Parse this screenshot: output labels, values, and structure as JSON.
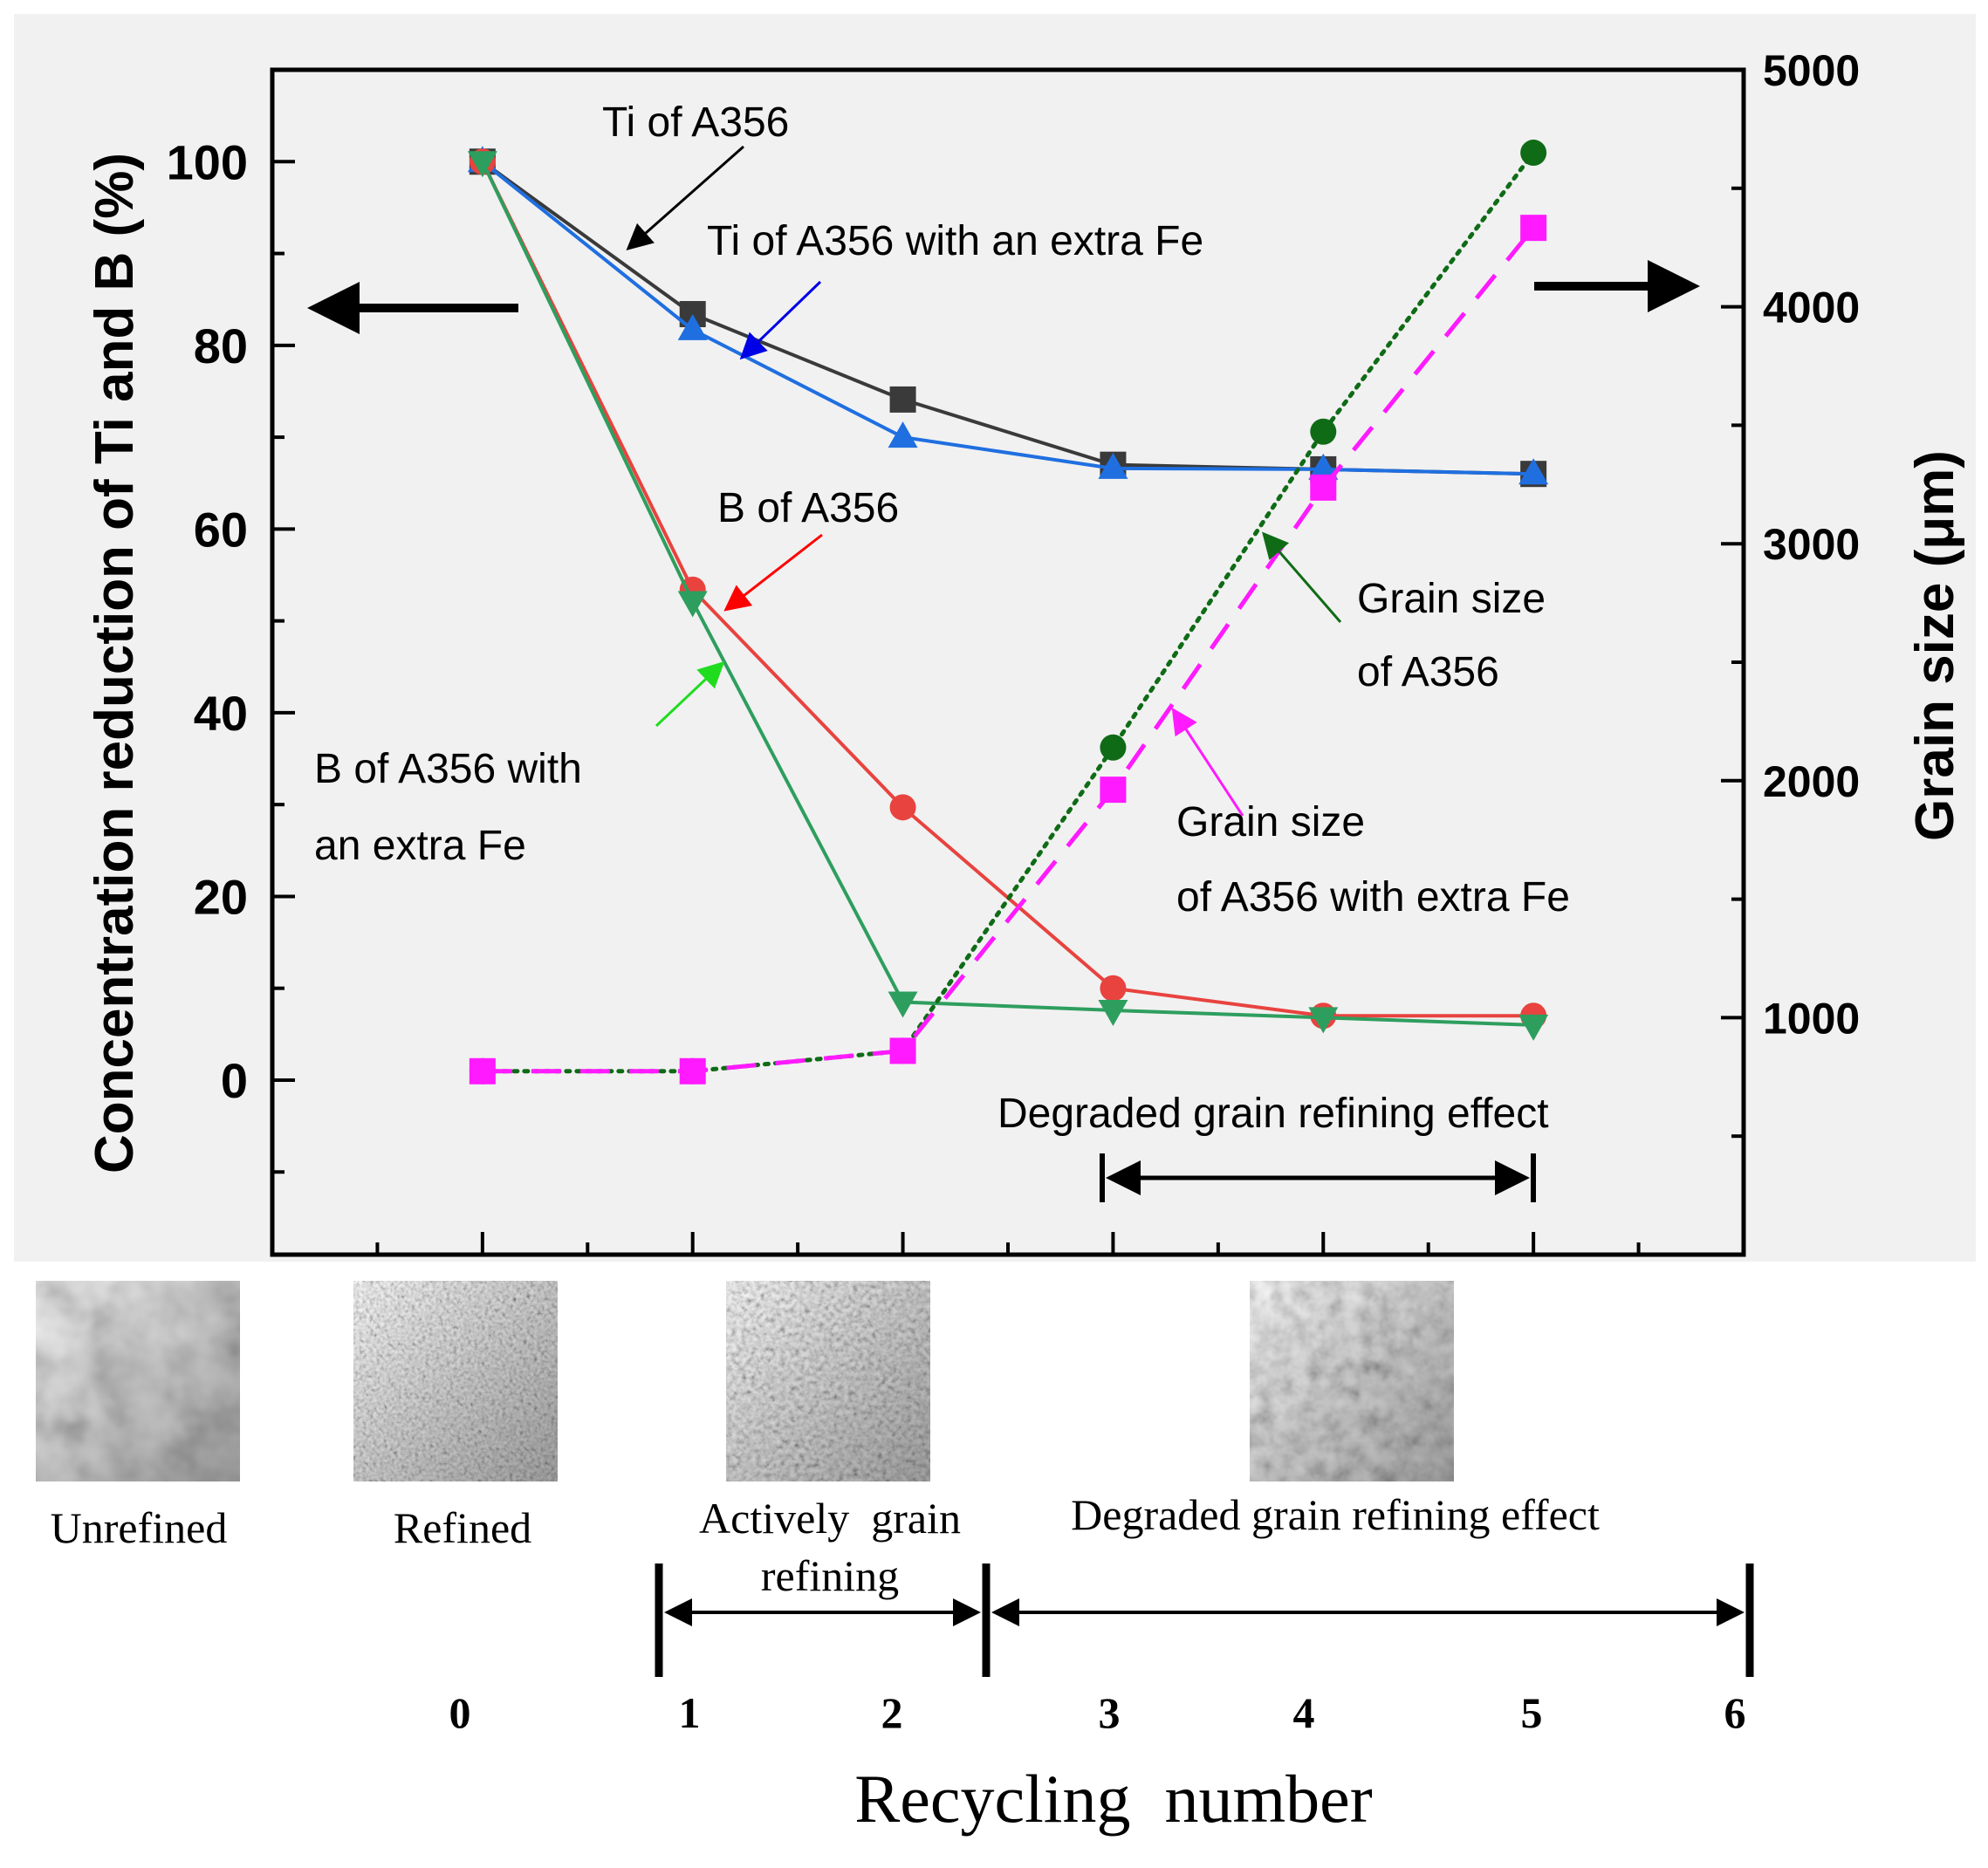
{
  "chart_data": {
    "type": "line",
    "title": "",
    "x": [
      0,
      1,
      2,
      3,
      4,
      5
    ],
    "xlim": [
      -1,
      6
    ],
    "x_minor_ticks": true,
    "ylabel_left": "Concentration reduction of Ti and B (%)",
    "ylim_left": [
      -19,
      110
    ],
    "yticks_left": [
      0,
      20,
      40,
      60,
      80,
      100
    ],
    "ylabel_right": "Grain size (μm)",
    "ylim_right": [
      0,
      5000
    ],
    "yticks_right": [
      1000,
      2000,
      3000,
      4000,
      5000
    ],
    "grid": false,
    "series": [
      {
        "name": "Ti of A356",
        "axis": "left",
        "marker": "square",
        "line": "solid",
        "color": "#3a3a3a",
        "values": [
          100,
          83.4,
          74.1,
          67,
          66.5,
          66
        ]
      },
      {
        "name": "Ti of A356 with an extra Fe",
        "axis": "left",
        "marker": "triangle-up",
        "line": "solid",
        "color": "#1f6fe0",
        "values": [
          100,
          81.7,
          70,
          66.6,
          66.5,
          66
        ]
      },
      {
        "name": "B of A356",
        "axis": "left",
        "marker": "circle",
        "line": "solid",
        "color": "#e8433f",
        "values": [
          100,
          53.4,
          29.7,
          10,
          7,
          7
        ]
      },
      {
        "name": "B of A356 with an extra Fe",
        "axis": "left",
        "marker": "triangle-down",
        "line": "solid",
        "color": "#2e9e5e",
        "values": [
          100,
          52.1,
          8.5,
          7.6,
          6.8,
          6
        ]
      },
      {
        "name": "Grain size of A356",
        "axis": "right",
        "marker": "circle",
        "line": "dotted",
        "color": "#0f6b16",
        "values": [
          774,
          774,
          860,
          2140,
          3473,
          4650
        ]
      },
      {
        "name": "Grain size of A356 with extra Fe",
        "axis": "right",
        "marker": "square",
        "line": "dashed",
        "color": "#ff1aff",
        "values": [
          774,
          774,
          860,
          1962,
          3237,
          4333
        ]
      }
    ],
    "annotations": [
      {
        "text": "Ti of A356",
        "arrow_color": "#000000"
      },
      {
        "text": "Ti of A356 with an extra Fe",
        "arrow_color": "#0000e6"
      },
      {
        "text": "B of A356",
        "arrow_color": "#ff0000"
      },
      {
        "text_lines": [
          "B of A356 with",
          "an extra Fe"
        ],
        "arrow_color": "#1fdc1f"
      },
      {
        "text_lines": [
          "Grain size",
          "of A356"
        ],
        "arrow_color": "#0f6b16"
      },
      {
        "text_lines": [
          "Grain size",
          "of A356 with extra Fe"
        ],
        "arrow_color": "#ff1aff"
      },
      {
        "text": "Degraded grain refining effect",
        "span": [
          3,
          5
        ]
      }
    ],
    "axis_arrows": {
      "left": "points to left axis",
      "right": "points to right axis"
    }
  },
  "bottom_panel": {
    "micrographs": [
      {
        "label": "Unrefined"
      },
      {
        "label": "Refined"
      },
      {
        "label": "Actively grain refining",
        "label_lines": [
          "Actively  grain",
          "refining"
        ]
      },
      {
        "label": "Degraded grain refining effect"
      }
    ],
    "stages": [
      {
        "name": "Actively grain refining",
        "from": 1,
        "to": 2
      },
      {
        "name": "Degraded grain refining effect",
        "from": 3,
        "to": 6
      }
    ],
    "x_ticks": [
      "0",
      "1",
      "2",
      "3",
      "4",
      "5",
      "6"
    ],
    "xlabel": "Recycling  number"
  }
}
